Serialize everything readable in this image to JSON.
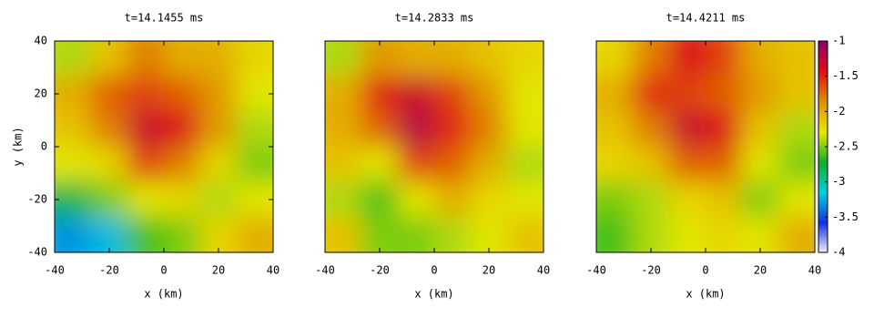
{
  "chart_data": [
    {
      "type": "heatmap",
      "title": "t=14.1455 ms",
      "xlabel": "x (km)",
      "ylabel": "y (km)",
      "xlim": [
        -40,
        40
      ],
      "xticks": [
        -40,
        -20,
        0,
        20,
        40
      ],
      "ylim": [
        -40,
        40
      ],
      "yticks": [
        -40,
        -20,
        0,
        20,
        40
      ],
      "zlim": [
        -4,
        -1
      ],
      "colormap": [
        "#f4f0ff",
        "#1030e0",
        "#00d0e0",
        "#10b020",
        "#e8e800",
        "#e09000",
        "#e01010",
        "#900070"
      ],
      "z": [
        [
          -2.4,
          -2.1,
          -1.8,
          -2.0,
          -2.0,
          -2.2
        ],
        [
          -2.0,
          -1.7,
          -1.6,
          -1.7,
          -1.9,
          -2.3
        ],
        [
          -2.1,
          -1.8,
          -1.3,
          -1.4,
          -1.9,
          -2.4
        ],
        [
          -2.3,
          -2.2,
          -1.6,
          -1.8,
          -2.2,
          -2.5
        ],
        [
          -2.8,
          -2.5,
          -2.3,
          -2.2,
          -2.4,
          -2.3
        ],
        [
          -3.3,
          -3.2,
          -2.6,
          -2.5,
          -2.2,
          -2.0
        ]
      ]
    },
    {
      "type": "heatmap",
      "title": "t=14.2833 ms",
      "xlabel": "x (km)",
      "xlim": [
        -40,
        40
      ],
      "xticks": [
        -40,
        -20,
        0,
        20,
        40
      ],
      "ylim": [
        -40,
        40
      ],
      "zlim": [
        -4,
        -1
      ],
      "colormap": [
        "#f4f0ff",
        "#1030e0",
        "#00d0e0",
        "#10b020",
        "#e8e800",
        "#e09000",
        "#e01010",
        "#900070"
      ],
      "z": [
        [
          -2.4,
          -1.9,
          -2.0,
          -2.0,
          -2.1,
          -2.2
        ],
        [
          -2.0,
          -1.5,
          -1.3,
          -1.6,
          -1.9,
          -2.3
        ],
        [
          -2.0,
          -1.7,
          -1.2,
          -1.5,
          -1.8,
          -2.3
        ],
        [
          -2.1,
          -2.3,
          -1.6,
          -1.7,
          -2.0,
          -2.4
        ],
        [
          -2.4,
          -2.6,
          -2.3,
          -2.0,
          -2.2,
          -2.3
        ],
        [
          -2.1,
          -2.5,
          -2.5,
          -2.4,
          -2.3,
          -2.1
        ]
      ]
    },
    {
      "type": "heatmap",
      "title": "t=14.4211 ms",
      "xlabel": "x (km)",
      "xlim": [
        -40,
        40
      ],
      "xticks": [
        -40,
        -20,
        0,
        20,
        40
      ],
      "ylim": [
        -40,
        40
      ],
      "zlim": [
        -4,
        -1
      ],
      "zticks": [
        -1,
        -1.5,
        -2,
        -2.5,
        -3,
        -3.5,
        -4
      ],
      "colorbar": true,
      "colormap": [
        "#f4f0ff",
        "#1030e0",
        "#00d0e0",
        "#10b020",
        "#e8e800",
        "#e09000",
        "#e01010",
        "#900070"
      ],
      "z": [
        [
          -2.2,
          -1.8,
          -1.4,
          -1.6,
          -2.0,
          -2.1
        ],
        [
          -2.0,
          -1.5,
          -1.6,
          -1.7,
          -1.9,
          -2.1
        ],
        [
          -2.1,
          -1.8,
          -1.3,
          -1.4,
          -2.1,
          -2.4
        ],
        [
          -2.2,
          -2.1,
          -1.7,
          -1.7,
          -2.3,
          -2.5
        ],
        [
          -2.5,
          -2.4,
          -2.2,
          -2.1,
          -2.5,
          -2.3
        ],
        [
          -2.6,
          -2.4,
          -2.3,
          -2.2,
          -2.3,
          -2.0
        ]
      ]
    }
  ]
}
